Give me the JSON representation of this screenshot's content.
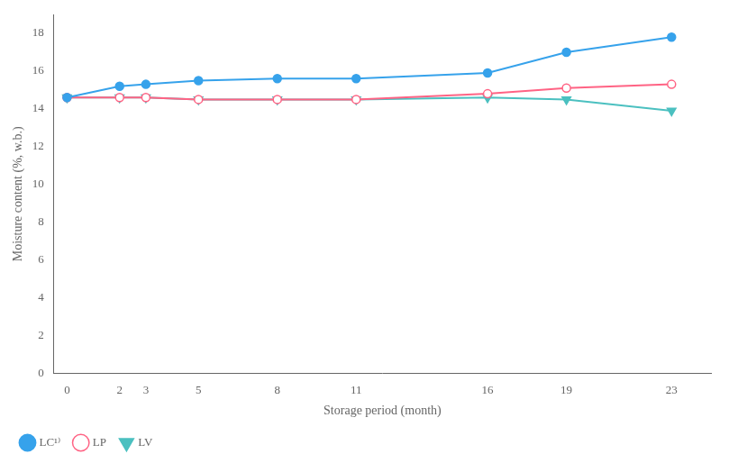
{
  "chart_data": {
    "type": "line",
    "x": [
      0,
      2,
      3,
      5,
      8,
      11,
      16,
      19,
      23
    ],
    "series": [
      {
        "name": "LC¹⁾",
        "marker": "circle",
        "values": [
          14.6,
          15.2,
          15.3,
          15.5,
          15.6,
          15.6,
          15.9,
          17.0,
          17.8
        ]
      },
      {
        "name": "LP",
        "marker": "open_circle",
        "values": [
          14.6,
          14.6,
          14.6,
          14.5,
          14.5,
          14.5,
          14.8,
          15.1,
          15.3
        ]
      },
      {
        "name": "LV",
        "marker": "triangle_down",
        "values": [
          14.6,
          14.6,
          14.6,
          14.5,
          14.5,
          14.5,
          14.6,
          14.5,
          13.9
        ]
      }
    ],
    "xlabel": "Storage period (month)",
    "ylabel": "Moisture content (%, w.b.)",
    "xlim": [
      -0.5,
      24.5
    ],
    "xticks": [
      0,
      2,
      3,
      5,
      8,
      11,
      16,
      19,
      23
    ],
    "ylim": [
      0,
      19
    ],
    "yticks": [
      0,
      2,
      4,
      6,
      8,
      10,
      12,
      14,
      16,
      18
    ],
    "grid": false,
    "legend": "lower left"
  }
}
